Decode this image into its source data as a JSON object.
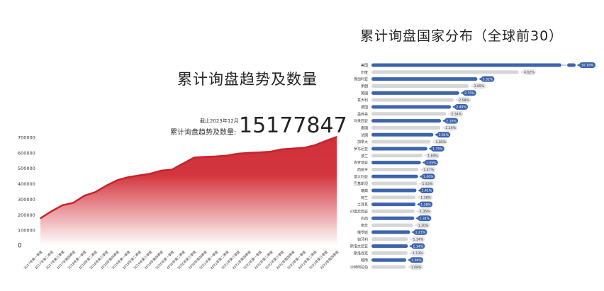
{
  "colors": {
    "area_red": "#d0303a",
    "line_red": "#c8232b",
    "bar_blue": "#3d64ad",
    "bar_gray": "#d6d6d8"
  },
  "chart_data": [
    {
      "type": "area",
      "title": "累计询盘趋势及数量",
      "as_of": "截止2023年12月",
      "total_label": "累计询盘趋势及数量:",
      "total_value": "15177847",
      "ylim": [
        0,
        700000
      ],
      "yticks": [
        "0",
        "100000",
        "200000",
        "300000",
        "400000",
        "500000",
        "600000",
        "700000"
      ],
      "grid": false,
      "categories": [
        "2017年第一季度",
        "2017年第二季度",
        "2017年第三季度",
        "2017年第四季度",
        "2018年第一季度",
        "2018年第二季度",
        "2018年第三季度",
        "2018年第四季度",
        "2019年第一季度",
        "2019年第二季度",
        "2019年第三季度",
        "2019年第四季度",
        "2020年第一季度",
        "2020年第二季度",
        "2020年第三季度",
        "2020年第四季度",
        "2021年第一季度",
        "2021年第二季度",
        "2021年第三季度",
        "2021年第四季度",
        "2022年第一季度",
        "2022年第二季度",
        "2022年第三季度",
        "2022年第四季度",
        "2023年第一季度",
        "2023年第二季度",
        "2023年第三季度",
        "2023年第四季度"
      ],
      "values": [
        177000,
        222000,
        261000,
        277000,
        323000,
        346000,
        388000,
        423000,
        443000,
        454000,
        465000,
        485000,
        492000,
        531000,
        569000,
        574000,
        577000,
        582000,
        595000,
        600000,
        603000,
        608000,
        623000,
        628000,
        632000,
        649000,
        677000,
        703000
      ]
    },
    {
      "type": "bar",
      "orientation": "horizontal",
      "title": "累计询盘国家分布（全球前30）",
      "axis_break_on_first": true,
      "categories": [
        "美国",
        "印度",
        "保加利亚",
        "伊朗",
        "英国",
        "意大利",
        "德国",
        "墨西哥",
        "马来西亚",
        "泰国",
        "法国",
        "加拿大",
        "罗马尼亚",
        "波兰",
        "克罗地亚",
        "西班牙",
        "澳大利亚",
        "巴基斯坦",
        "瑞典",
        "荷兰",
        "土耳其",
        "印度尼西亚",
        "巴西",
        "南非",
        "俄罗斯",
        "匈牙利",
        "斯洛文尼亚",
        "斯洛伐克",
        "越南",
        "沙特阿拉伯"
      ],
      "values": [
        10.18,
        4.62,
        3.32,
        3.05,
        2.75,
        2.58,
        2.49,
        2.34,
        2.18,
        2.16,
        1.94,
        1.85,
        1.75,
        1.6,
        1.55,
        1.47,
        1.46,
        1.43,
        1.41,
        1.38,
        1.38,
        1.35,
        1.34,
        1.3,
        1.21,
        1.14,
        1.14,
        1.13,
        1.09,
        1.08
      ],
      "labels": [
        "10.18%",
        "4.62%",
        "3.32%",
        "3.05%",
        "2.75%",
        "2.58%",
        "2.49%",
        "2.34%",
        "2.18%",
        "2.16%",
        "1.94%",
        "1.85%",
        "1.75%",
        "1.60%",
        "1.55%",
        "1.47%",
        "1.46%",
        "1.43%",
        "1.41%",
        "1.38%",
        "1.38%",
        "1.35%",
        "1.34%",
        "1.30%",
        "1.21%",
        "1.14%",
        "1.14%",
        "1.13%",
        "1.09%",
        "1.08%"
      ]
    }
  ]
}
